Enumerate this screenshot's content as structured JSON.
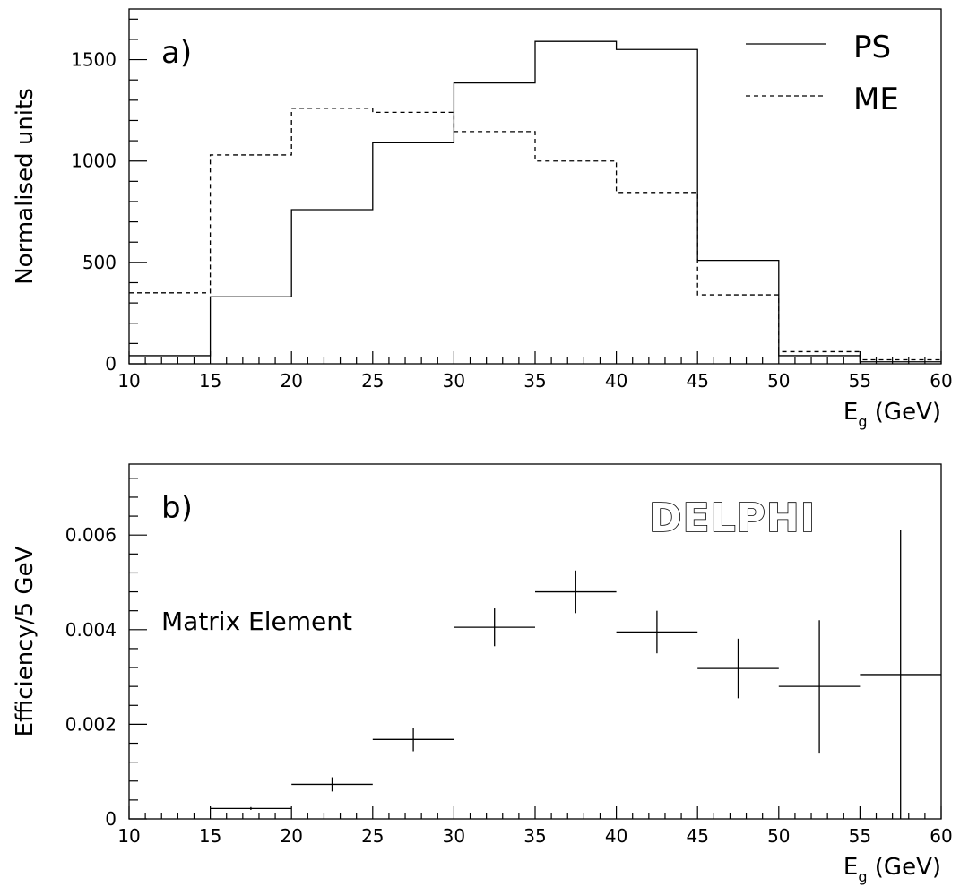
{
  "chart_data": [
    {
      "panel": "a)",
      "type": "histogram",
      "xlabel_main": "E",
      "xlabel_sub": "g",
      "xlabel_unit": " (GeV)",
      "ylabel": "Normalised units",
      "xlim": [
        10,
        60
      ],
      "ylim": [
        0,
        1750
      ],
      "xticks": [
        10,
        15,
        20,
        25,
        30,
        35,
        40,
        45,
        50,
        55,
        60
      ],
      "yticks": [
        0,
        500,
        1000,
        1500
      ],
      "bin_edges": [
        10,
        15,
        20,
        25,
        30,
        35,
        40,
        45,
        50,
        55,
        60
      ],
      "series": [
        {
          "name": "PS",
          "style": "solid",
          "values": [
            40,
            330,
            760,
            1090,
            1385,
            1590,
            1550,
            510,
            40,
            10
          ]
        },
        {
          "name": "ME",
          "style": "dashed",
          "values": [
            350,
            1030,
            1260,
            1240,
            1145,
            1000,
            845,
            340,
            60,
            20
          ]
        }
      ],
      "legend_position": "top-right"
    },
    {
      "panel": "b)",
      "type": "scatter",
      "xlabel_main": "E",
      "xlabel_sub": "g",
      "xlabel_unit": " (GeV)",
      "ylabel": "Efficiency/5 GeV",
      "xlim": [
        10,
        60
      ],
      "ylim": [
        0,
        0.0075
      ],
      "xticks": [
        10,
        15,
        20,
        25,
        30,
        35,
        40,
        45,
        50,
        55,
        60
      ],
      "yticks": [
        0,
        0.002,
        0.004,
        0.006
      ],
      "ytick_labels": [
        "0",
        "0.002",
        "0.004",
        "0.006"
      ],
      "annotation": "Matrix Element",
      "logo": "DELPHI",
      "points": [
        {
          "x": 17.5,
          "xerr": 2.5,
          "y": 0.00022,
          "yerr": 3e-05
        },
        {
          "x": 22.5,
          "xerr": 2.5,
          "y": 0.00073,
          "yerr": 0.00015
        },
        {
          "x": 27.5,
          "xerr": 2.5,
          "y": 0.00168,
          "yerr": 0.00025
        },
        {
          "x": 32.5,
          "xerr": 2.5,
          "y": 0.00405,
          "yerr": 0.0004
        },
        {
          "x": 37.5,
          "xerr": 2.5,
          "y": 0.0048,
          "yerr": 0.00045
        },
        {
          "x": 42.5,
          "xerr": 2.5,
          "y": 0.00395,
          "yerr": 0.00045
        },
        {
          "x": 47.5,
          "xerr": 2.5,
          "y": 0.00318,
          "yerr": 0.00063
        },
        {
          "x": 52.5,
          "xerr": 2.5,
          "y": 0.0028,
          "yerr": 0.0014
        },
        {
          "x": 57.5,
          "xerr": 2.5,
          "y": 0.00305,
          "yerr": 0.00305
        }
      ]
    }
  ]
}
